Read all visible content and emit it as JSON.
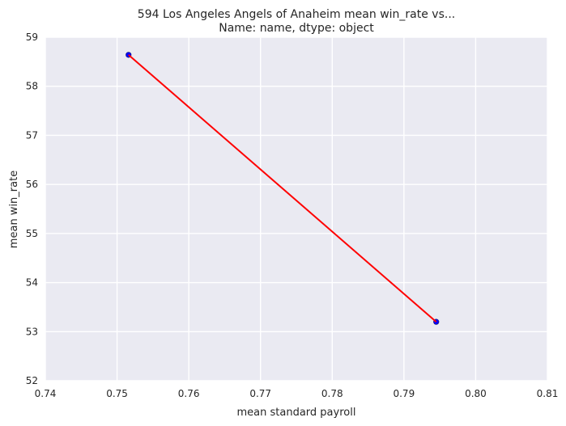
{
  "chart_data": {
    "type": "line",
    "title_line1": "594    Los Angeles Angels of Anaheim mean win_rate vs...",
    "title_line2": "Name: name, dtype: object",
    "xlabel": "mean standard payroll",
    "ylabel": "mean win_rate",
    "xlim": [
      0.74,
      0.81
    ],
    "ylim": [
      52,
      59
    ],
    "xticks": [
      "0.74",
      "0.75",
      "0.76",
      "0.77",
      "0.78",
      "0.79",
      "0.80",
      "0.81"
    ],
    "yticks": [
      "52",
      "53",
      "54",
      "55",
      "56",
      "57",
      "58",
      "59"
    ],
    "grid": true,
    "background_color": "#EAEAF2",
    "series": [
      {
        "kind": "scatter",
        "color": "#0000FF",
        "x": [
          0.7516,
          0.7945
        ],
        "y": [
          58.64,
          53.2
        ]
      },
      {
        "kind": "line",
        "color": "#FF0000",
        "x": [
          0.7516,
          0.7945
        ],
        "y": [
          58.64,
          53.2
        ]
      }
    ]
  }
}
